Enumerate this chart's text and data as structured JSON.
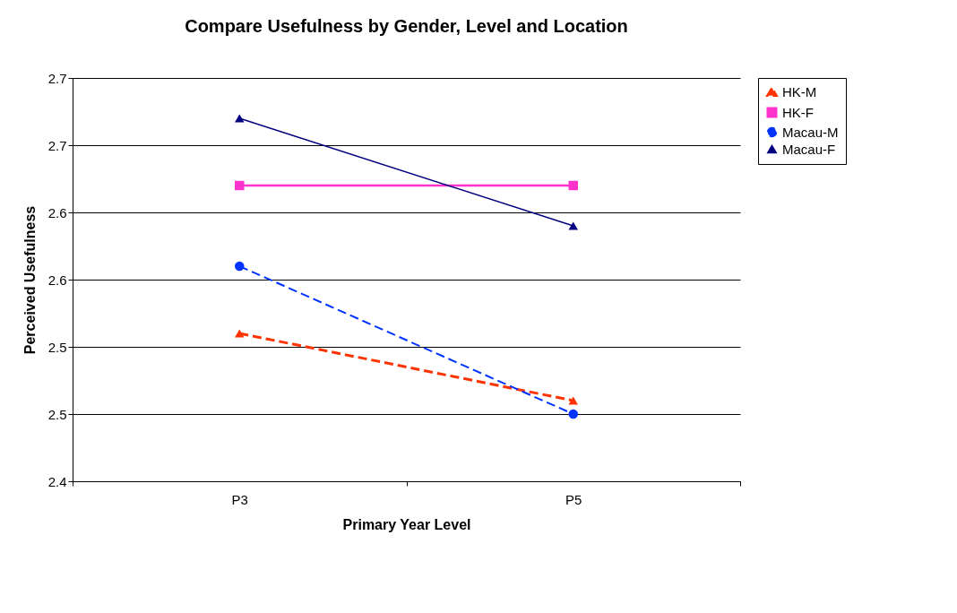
{
  "chart_data": {
    "type": "line",
    "title": "Compare Usefulness by Gender, Level and Location",
    "xlabel": "Primary Year Level",
    "ylabel": "Perceived Usefulness",
    "categories": [
      "P3",
      "P5"
    ],
    "series": [
      {
        "name": "HK-M",
        "color": "#ff3300",
        "values": [
          2.51,
          2.46
        ],
        "marker": "triangle",
        "line_style": "dashed"
      },
      {
        "name": "HK-F",
        "color": "#ff33cc",
        "values": [
          2.62,
          2.62
        ],
        "marker": "square",
        "line_style": "solid"
      },
      {
        "name": "Macau-M",
        "color": "#0033ff",
        "values": [
          2.56,
          2.45
        ],
        "marker": "circle",
        "line_style": "dashed"
      },
      {
        "name": "Macau-F",
        "color": "#000080",
        "values": [
          2.67,
          2.59
        ],
        "marker": "triangle",
        "line_style": "solid"
      }
    ],
    "ylim": [
      2.4,
      2.7
    ],
    "yticks": [
      2.4,
      {
        "value": 2.45,
        "label": "2.5"
      },
      2.5,
      {
        "value": 2.55,
        "label": "2.6"
      },
      2.6,
      {
        "value": 2.65,
        "label": "2.7"
      },
      2.7
    ],
    "grid": "y",
    "legend": "right"
  }
}
